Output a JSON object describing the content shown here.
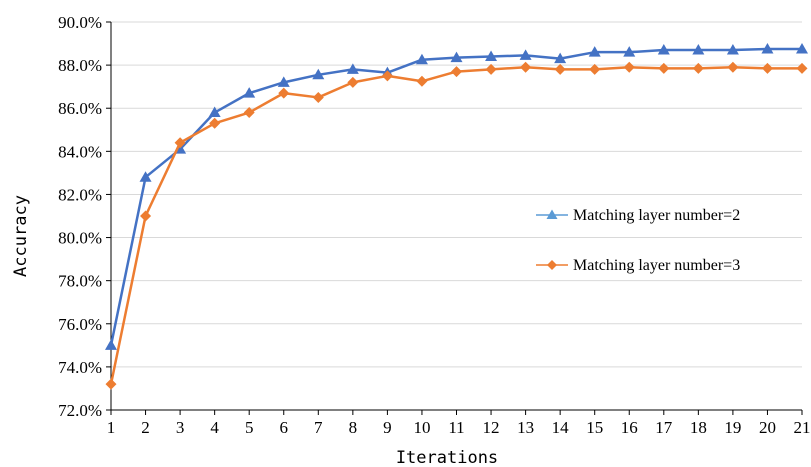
{
  "chart_data": {
    "type": "line",
    "title": "",
    "xlabel": "Iterations",
    "ylabel": "Accuracy",
    "x": [
      1,
      2,
      3,
      4,
      5,
      6,
      7,
      8,
      9,
      10,
      11,
      12,
      13,
      14,
      15,
      16,
      17,
      18,
      19,
      20,
      21
    ],
    "ylim": [
      72.0,
      90.0
    ],
    "yticks": [
      "72.0%",
      "74.0%",
      "76.0%",
      "78.0%",
      "80.0%",
      "82.0%",
      "84.0%",
      "86.0%",
      "88.0%",
      "90.0%"
    ],
    "grid": "horizontal",
    "legend_position": "right",
    "series": [
      {
        "name": "Matching layer number=2",
        "color": "#4472c4",
        "legend_color": "#5b9bd5",
        "marker": "triangle",
        "values": [
          75.0,
          82.8,
          84.1,
          85.8,
          86.7,
          87.2,
          87.55,
          87.8,
          87.65,
          88.25,
          88.35,
          88.4,
          88.45,
          88.3,
          88.6,
          88.6,
          88.7,
          88.7,
          88.7,
          88.75,
          88.75
        ]
      },
      {
        "name": "Matching layer number=3",
        "color": "#ed7d31",
        "legend_color": "#ed7d31",
        "marker": "diamond",
        "values": [
          73.2,
          81.0,
          84.4,
          85.3,
          85.8,
          86.7,
          86.5,
          87.2,
          87.5,
          87.25,
          87.7,
          87.8,
          87.9,
          87.8,
          87.8,
          87.9,
          87.85,
          87.85,
          87.9,
          87.85,
          87.85
        ]
      }
    ]
  }
}
